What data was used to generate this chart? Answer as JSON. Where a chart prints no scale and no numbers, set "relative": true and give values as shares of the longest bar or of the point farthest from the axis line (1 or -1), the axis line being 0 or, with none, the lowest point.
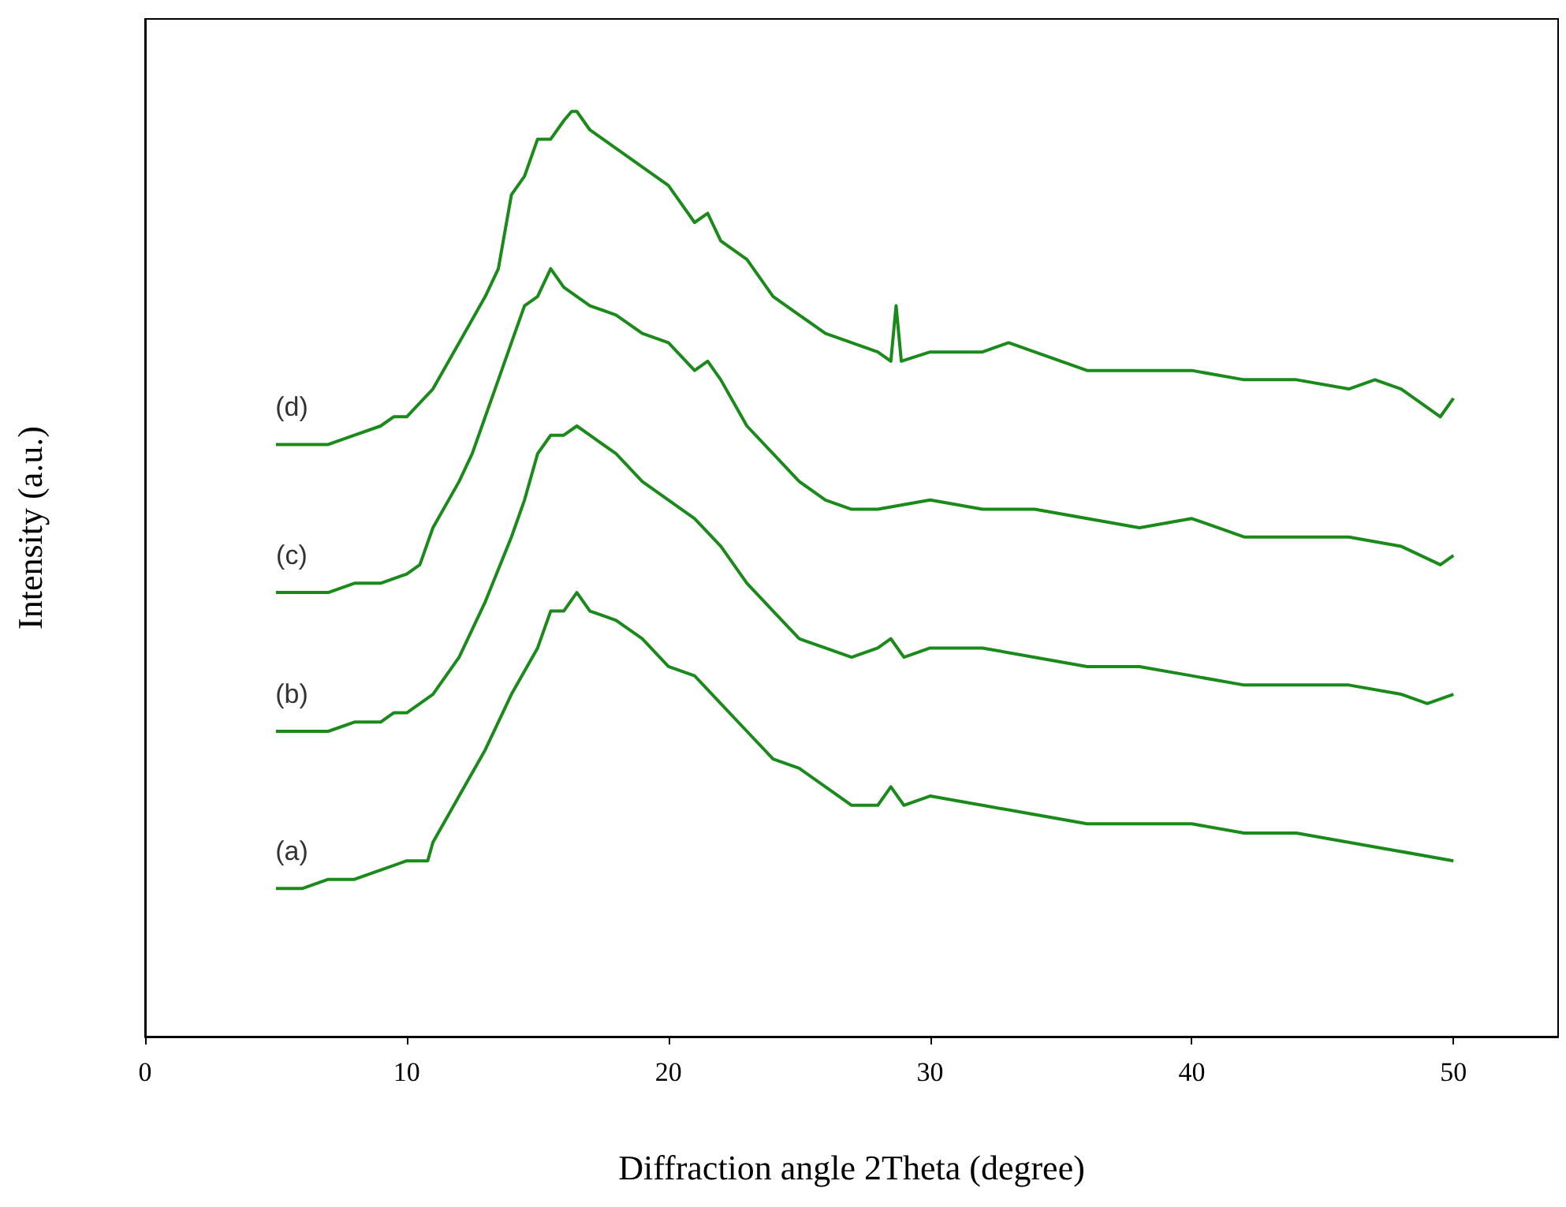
{
  "chart_data": {
    "type": "line",
    "relative": true,
    "xlabel": "Diffraction angle 2Theta (degree)",
    "ylabel": "Intensity (a.u.)",
    "xlim": [
      0,
      54
    ],
    "xticks": [
      0,
      10,
      20,
      30,
      40,
      50
    ],
    "tick_labels": "x",
    "marker": "none",
    "legend": false,
    "series": [
      {
        "name": "(a)",
        "color": "#1a8a1a",
        "x": [
          5,
          6,
          7,
          8,
          9,
          10,
          10.8,
          11,
          12,
          13,
          14,
          15,
          15.5,
          16,
          16.5,
          17,
          18,
          19,
          20,
          21,
          22,
          23,
          24,
          25,
          26,
          27,
          28,
          28.5,
          29,
          30,
          32,
          34,
          36,
          38,
          40,
          42,
          44,
          46,
          48,
          50
        ],
        "values": [
          0.16,
          0.16,
          0.17,
          0.17,
          0.18,
          0.19,
          0.19,
          0.21,
          0.26,
          0.31,
          0.37,
          0.42,
          0.46,
          0.46,
          0.48,
          0.46,
          0.45,
          0.43,
          0.4,
          0.39,
          0.36,
          0.33,
          0.3,
          0.29,
          0.27,
          0.25,
          0.25,
          0.27,
          0.25,
          0.26,
          0.25,
          0.24,
          0.23,
          0.23,
          0.23,
          0.22,
          0.22,
          0.21,
          0.2,
          0.19
        ]
      },
      {
        "name": "(b)",
        "color": "#1a8a1a",
        "x": [
          5,
          6,
          7,
          8,
          9,
          9.5,
          10,
          11,
          12,
          13,
          14,
          14.5,
          15,
          15.5,
          16,
          16.5,
          17,
          18,
          19,
          20,
          21,
          22,
          23,
          24,
          25,
          26,
          27,
          28,
          28.5,
          29,
          30,
          32,
          34,
          36,
          38,
          40,
          42,
          44,
          46,
          48,
          49,
          50
        ],
        "values": [
          0.33,
          0.33,
          0.33,
          0.34,
          0.34,
          0.35,
          0.35,
          0.37,
          0.41,
          0.47,
          0.54,
          0.58,
          0.63,
          0.65,
          0.65,
          0.66,
          0.65,
          0.63,
          0.6,
          0.58,
          0.56,
          0.53,
          0.49,
          0.46,
          0.43,
          0.42,
          0.41,
          0.42,
          0.43,
          0.41,
          0.42,
          0.42,
          0.41,
          0.4,
          0.4,
          0.39,
          0.38,
          0.38,
          0.38,
          0.37,
          0.36,
          0.37
        ]
      },
      {
        "name": "(c)",
        "color": "#1a8a1a",
        "x": [
          5,
          6,
          7,
          8,
          9,
          10,
          10.5,
          11,
          12,
          12.5,
          13,
          13.5,
          14,
          14.5,
          15,
          15.5,
          16,
          16.5,
          17,
          18,
          19,
          20,
          21,
          21.5,
          22,
          23,
          24,
          25,
          26,
          27,
          28,
          30,
          32,
          34,
          36,
          38,
          40,
          42,
          44,
          46,
          48,
          49.5,
          50
        ],
        "values": [
          0.48,
          0.48,
          0.48,
          0.49,
          0.49,
          0.5,
          0.51,
          0.55,
          0.6,
          0.63,
          0.67,
          0.71,
          0.75,
          0.79,
          0.8,
          0.83,
          0.81,
          0.8,
          0.79,
          0.78,
          0.76,
          0.75,
          0.72,
          0.73,
          0.71,
          0.66,
          0.63,
          0.6,
          0.58,
          0.57,
          0.57,
          0.58,
          0.57,
          0.57,
          0.56,
          0.55,
          0.56,
          0.54,
          0.54,
          0.54,
          0.53,
          0.51,
          0.52
        ]
      },
      {
        "name": "(d)",
        "color": "#1a8a1a",
        "x": [
          5,
          6,
          7,
          8,
          9,
          9.5,
          10,
          11,
          12,
          13,
          13.5,
          14,
          14.5,
          15,
          15.5,
          16,
          16.3,
          16.5,
          17,
          17.5,
          18,
          19,
          20,
          21,
          21.5,
          22,
          23,
          24,
          25,
          26,
          27,
          28,
          28.5,
          28.7,
          28.9,
          30,
          31,
          32,
          33,
          34,
          36,
          38,
          40,
          42,
          44,
          46,
          47,
          48,
          49.5,
          50
        ],
        "values": [
          0.64,
          0.64,
          0.64,
          0.65,
          0.66,
          0.67,
          0.67,
          0.7,
          0.75,
          0.8,
          0.83,
          0.91,
          0.93,
          0.97,
          0.97,
          0.99,
          1,
          1,
          0.98,
          0.97,
          0.96,
          0.94,
          0.92,
          0.88,
          0.89,
          0.86,
          0.84,
          0.8,
          0.78,
          0.76,
          0.75,
          0.74,
          0.73,
          0.79,
          0.73,
          0.74,
          0.74,
          0.74,
          0.75,
          0.74,
          0.72,
          0.72,
          0.72,
          0.71,
          0.71,
          0.7,
          0.71,
          0.7,
          0.67,
          0.69
        ]
      }
    ]
  }
}
